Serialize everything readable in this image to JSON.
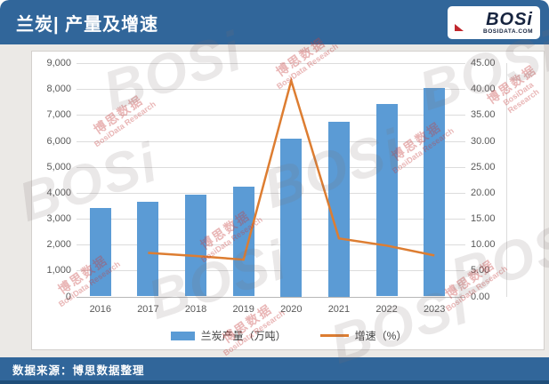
{
  "header": {
    "title": "兰炭| 产量及增速",
    "logo": {
      "text": "BOSi",
      "subtext": "BOSIDATA.COM"
    }
  },
  "footer": {
    "source": "数据来源：博思数据整理"
  },
  "watermark": {
    "cn": "博思数据",
    "en": "BosiData Research",
    "ghost": "BOSi"
  },
  "colors": {
    "header_blue": "#31669a",
    "footer_strip_blue": "#1f4e79",
    "bar_blue": "#5b9bd5",
    "line_orange": "#dd7d31"
  },
  "chart_data": {
    "type": "bar",
    "subtype": "bar+line combo",
    "title": "兰炭| 产量及增速",
    "categories": [
      "2016",
      "2017",
      "2018",
      "2019",
      "2020",
      "2021",
      "2022",
      "2023"
    ],
    "series": [
      {
        "name": "兰炭产量（万吨）",
        "type": "bar",
        "axis": "left",
        "color": "#5b9bd5",
        "values": [
          3400,
          3650,
          3940,
          4220,
          6090,
          6750,
          7430,
          8050
        ]
      },
      {
        "name": "增速（%）",
        "type": "line",
        "axis": "right",
        "color": "#dd7d31",
        "values": [
          null,
          8.4,
          7.8,
          7.1,
          41.6,
          11.2,
          9.8,
          7.9
        ]
      }
    ],
    "left_axis": {
      "min": 0,
      "max": 9000,
      "step": 1000,
      "tick_labels": [
        "0",
        "1,000",
        "2,000",
        "3,000",
        "4,000",
        "5,000",
        "6,000",
        "7,000",
        "8,000",
        "9,000"
      ]
    },
    "right_axis": {
      "min": 0,
      "max": 45,
      "step": 5,
      "tick_labels": [
        "0.00",
        "5.00",
        "10.00",
        "15.00",
        "20.00",
        "25.00",
        "30.00",
        "35.00",
        "40.00",
        "45.00"
      ]
    },
    "grid": true,
    "legend_position": "bottom",
    "legend": [
      {
        "label": "兰炭产量（万吨）",
        "type": "bar"
      },
      {
        "label": "增速（%）",
        "type": "line"
      }
    ]
  }
}
